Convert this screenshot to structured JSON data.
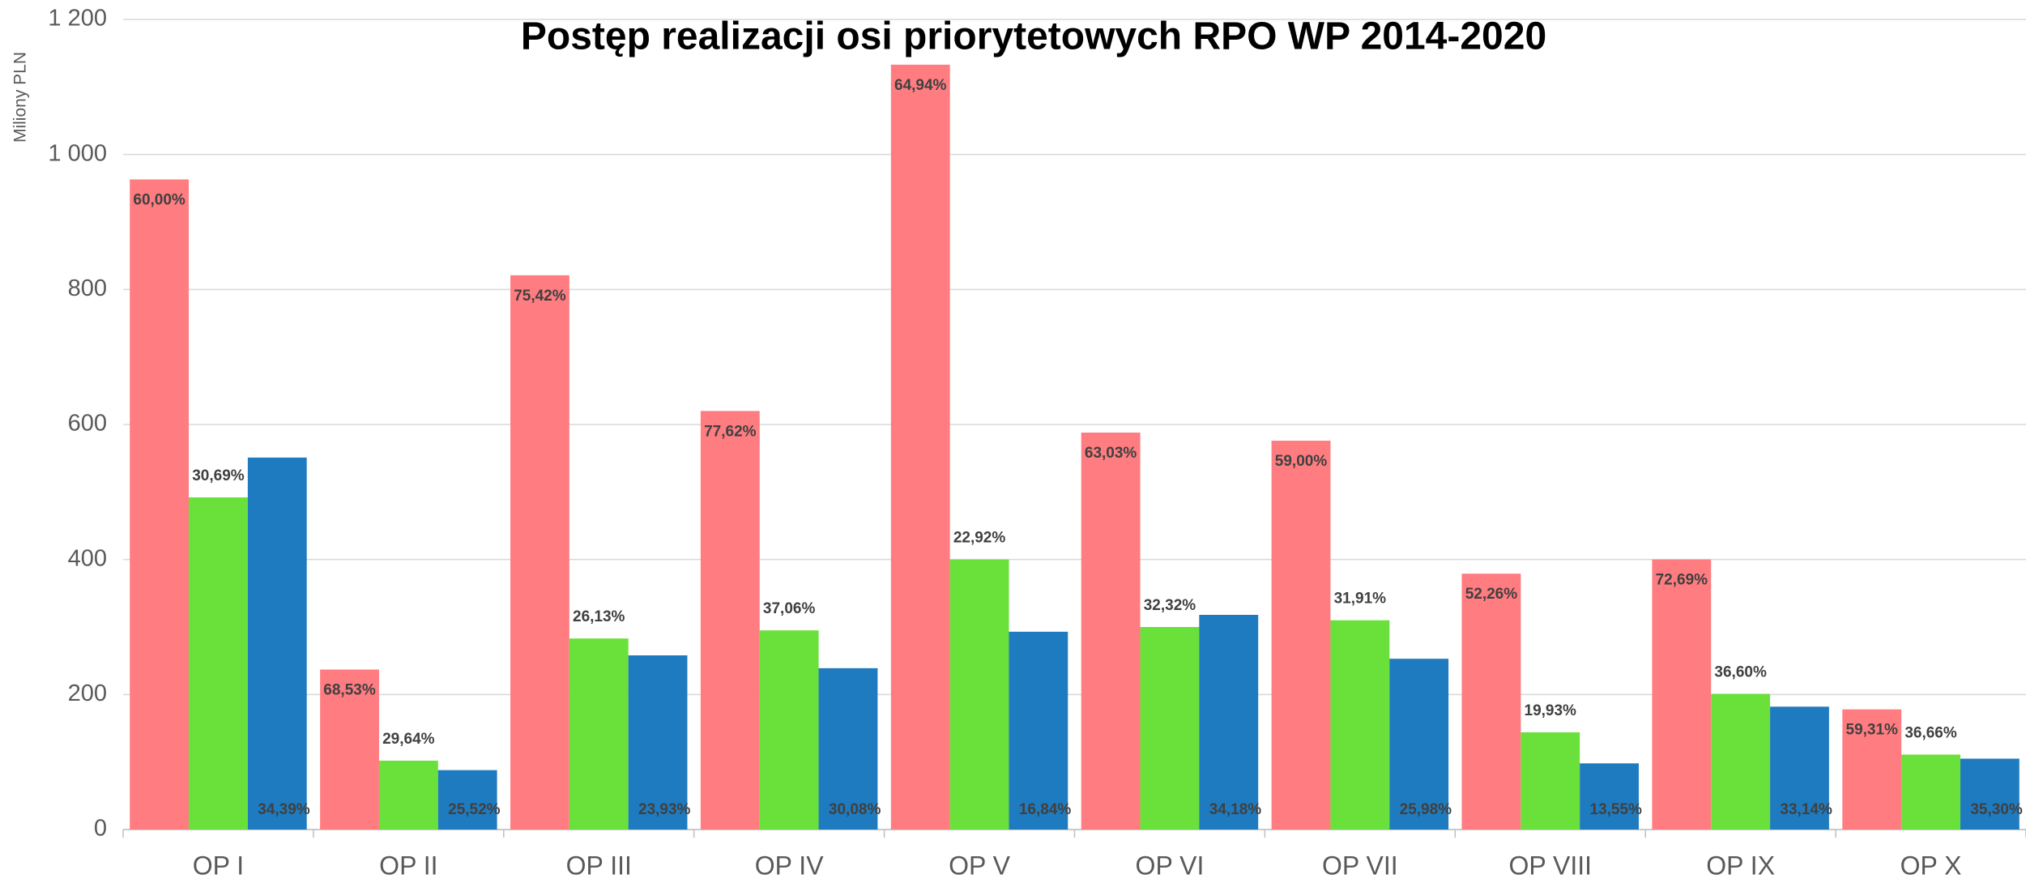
{
  "chart_data": {
    "type": "bar",
    "title": "Postęp realizacji osi priorytetowych RPO WP 2014-2020",
    "y_label": "Miliony PLN",
    "categories": [
      "OP I",
      "OP II",
      "OP III",
      "OP IV",
      "OP V",
      "OP VI",
      "OP VII",
      "OP VIII",
      "OP IX",
      "OP X"
    ],
    "series": [
      {
        "color": "#ff7c80",
        "values": [
          963,
          237,
          821,
          620,
          1133,
          588,
          576,
          379,
          400,
          178
        ],
        "labels": [
          "60,00%",
          "68,53%",
          "75,42%",
          "77,62%",
          "64,94%",
          "63,03%",
          "59,00%",
          "52,26%",
          "72,69%",
          "59,31%"
        ]
      },
      {
        "color": "#6ae03a",
        "values": [
          492,
          102,
          283,
          295,
          400,
          300,
          310,
          144,
          201,
          111
        ],
        "labels": [
          "30,69%",
          "29,64%",
          "26,13%",
          "37,06%",
          "22,92%",
          "32,32%",
          "31,91%",
          "19,93%",
          "36,60%",
          "36,66%"
        ]
      },
      {
        "color": "#1f7bbf",
        "values": [
          551,
          88,
          258,
          239,
          293,
          318,
          253,
          98,
          182,
          105
        ],
        "labels": [
          "34,39%",
          "25,52%",
          "23,93%",
          "30,08%",
          "16,84%",
          "34,18%",
          "25,98%",
          "13,55%",
          "33,14%",
          "35,30%"
        ]
      }
    ],
    "ylim": [
      0,
      1200
    ],
    "yticks": [
      0,
      200,
      400,
      600,
      800,
      {
        "value": 1000,
        "label": "1 000"
      },
      {
        "value": 1200,
        "label": "1 200"
      }
    ],
    "grid": true
  }
}
